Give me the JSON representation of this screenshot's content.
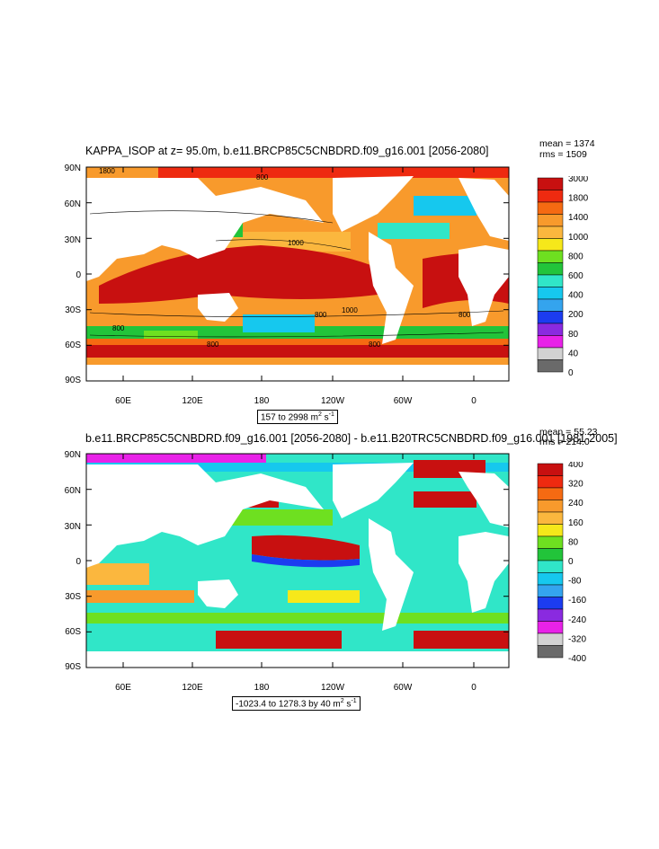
{
  "panels": [
    {
      "title": "KAPPA_ISOP at z=  95.0m, b.e11.BRCP85C5CNBDRD.f09_g16.001 [2056-2080]",
      "stats": {
        "mean": "mean = 1374",
        "rms": "rms = 1509"
      },
      "range_label": {
        "text": "157 to 2998 m",
        "sup1": "2",
        "mid": " s",
        "sup2": "-1"
      },
      "lat_labels": [
        "90N",
        "60N",
        "30N",
        "0",
        "30S",
        "60S",
        "90S"
      ],
      "lon_labels": [
        "60E",
        "120E",
        "180",
        "120W",
        "60W",
        "0"
      ],
      "colorbar": {
        "labels": [
          "3000",
          "1800",
          "1400",
          "1000",
          "800",
          "600",
          "400",
          "200",
          "80",
          "40",
          "0"
        ],
        "colors": [
          "#c81010",
          "#ee2a10",
          "#f56a12",
          "#f89a2c",
          "#fbb73e",
          "#f6e81a",
          "#6ee020",
          "#22c43a",
          "#30e6c8",
          "#16c8ee",
          "#34a4ee",
          "#1c3cf0",
          "#8a2ae0",
          "#e822e8",
          "#d2d2d2",
          "#6a6a6a"
        ]
      },
      "contour_labels": [
        "1800",
        "1000",
        "800",
        "800",
        "1000",
        "800",
        "800",
        "800",
        "800"
      ]
    },
    {
      "title": "b.e11.BRCP85C5CNBDRD.f09_g16.001 [2056-2080] - b.e11.B20TRC5CNBDRD.f09_g16.001 [1981-2005]",
      "stats": {
        "mean": "mean = 55.23",
        "rms": "rms = 214.0"
      },
      "range_label": {
        "text": "-1023.4 to 1278.3 by 40 m",
        "sup1": "2",
        "mid": " s",
        "sup2": "-1"
      },
      "lat_labels": [
        "90N",
        "60N",
        "30N",
        "0",
        "30S",
        "60S",
        "90S"
      ],
      "lon_labels": [
        "60E",
        "120E",
        "180",
        "120W",
        "60W",
        "0"
      ],
      "colorbar": {
        "labels": [
          "400",
          "320",
          "240",
          "160",
          "80",
          "0",
          "-80",
          "-160",
          "-240",
          "-320",
          "-400"
        ],
        "colors": [
          "#c81010",
          "#ee2a10",
          "#f56a12",
          "#f89a2c",
          "#fbb73e",
          "#f6e81a",
          "#6ee020",
          "#22c43a",
          "#30e6c8",
          "#16c8ee",
          "#34a4ee",
          "#1c3cf0",
          "#8a2ae0",
          "#e822e8",
          "#d2d2d2",
          "#6a6a6a"
        ]
      }
    }
  ]
}
